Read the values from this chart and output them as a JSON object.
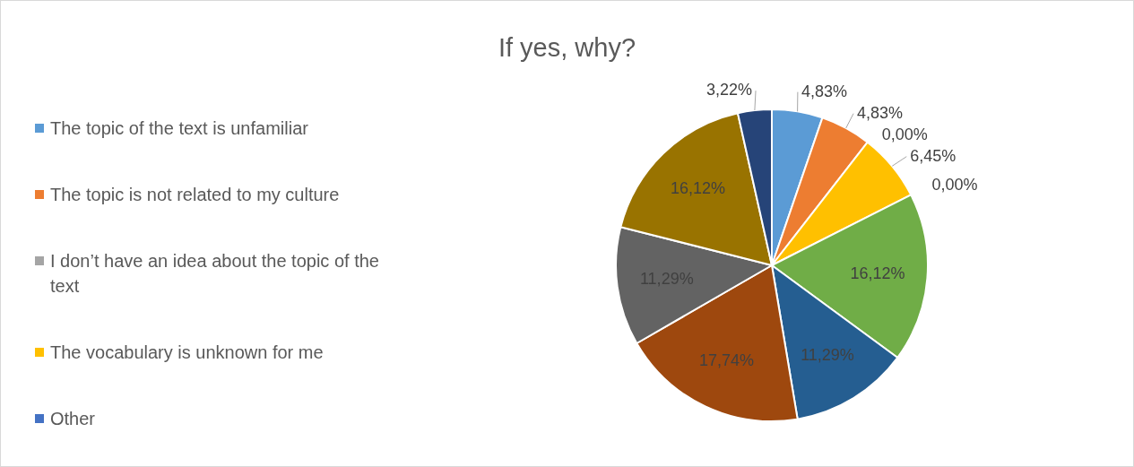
{
  "chart_data": {
    "type": "pie",
    "title": "If yes, why?",
    "categories": [
      "The topic of the text is unfamiliar",
      "The topic is not related to my culture",
      "I don’t have an idea about the topic of the text",
      "The vocabulary is unknown for me",
      "Other",
      null,
      null,
      null,
      null,
      null,
      null
    ],
    "values": [
      4.83,
      4.83,
      0,
      6.45,
      0,
      16.12,
      11.29,
      17.74,
      11.29,
      16.12,
      3.22
    ],
    "colors": [
      "#5b9bd5",
      "#ed7d31",
      "#a5a5a5",
      "#ffc000",
      "#4472c4",
      "#70ad47",
      "#255e91",
      "#9e480e",
      "#636363",
      "#997300",
      "#264478"
    ],
    "value_labels": [
      "4,83%",
      "4,83%",
      "0,00%",
      "6,45%",
      "0,00%",
      "16,12%",
      "11,29%",
      "17,74%",
      "11,29%",
      "16,12%",
      "3,22%"
    ],
    "legend": "left"
  }
}
